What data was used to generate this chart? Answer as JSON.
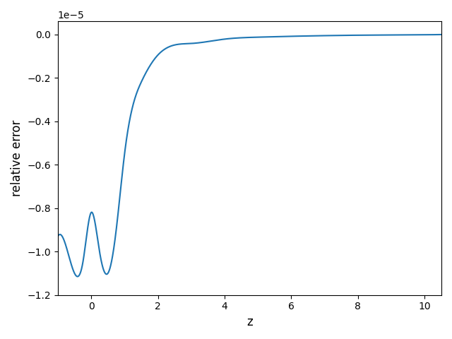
{
  "title": "",
  "xlabel": "z",
  "ylabel": "relative error",
  "line_color": "#1f77b4",
  "line_width": 1.5,
  "xlim": [
    -1.0,
    10.5
  ],
  "ylim": [
    -1.2e-05,
    6e-07
  ],
  "background_color": "#ffffff",
  "key_points_z": [
    -1.0,
    -0.5,
    -0.25,
    0.0,
    0.25,
    0.5,
    0.75,
    1.0,
    1.5,
    2.0,
    3.0,
    4.0,
    5.0,
    6.0,
    7.0,
    8.0,
    9.0,
    10.0,
    10.5
  ],
  "key_points_y": [
    -0.93,
    -1.1,
    -1.05,
    -0.82,
    -1.0,
    -1.1,
    -0.9,
    -0.55,
    -0.22,
    -0.095,
    -0.042,
    -0.022,
    -0.013,
    -0.009,
    -0.006,
    -0.004,
    -0.003,
    -0.002,
    -0.001
  ]
}
